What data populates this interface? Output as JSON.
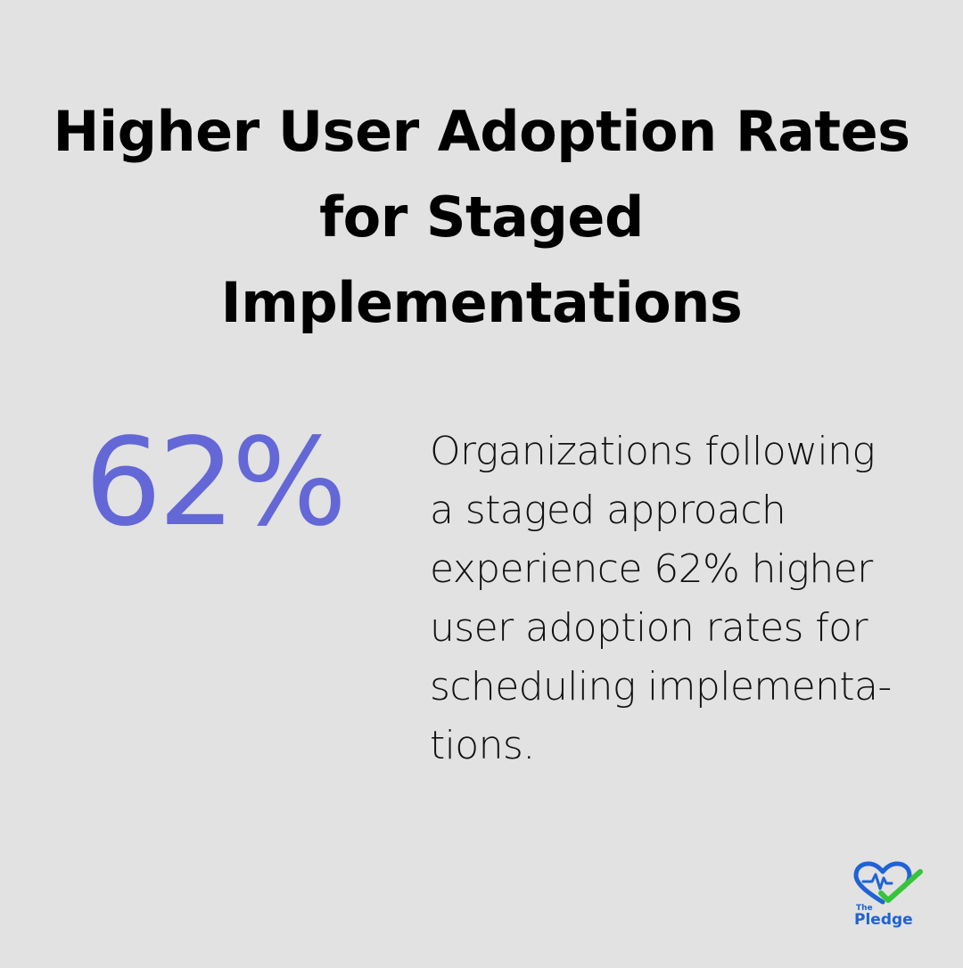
{
  "title": {
    "lines": [
      "Higher User Adoption Rates",
      "for Staged",
      "Implementations"
    ]
  },
  "stat": {
    "value": "62%",
    "description_lines": [
      "Organizations following",
      "a staged approach",
      "experience 62% higher",
      "user adoption rates for",
      "scheduling implementa-",
      "tions."
    ]
  },
  "logo": {
    "small_text": "The",
    "large_text": "Pledge",
    "icon": "heart-check-icon"
  },
  "colors": {
    "background": "#e1e2e1",
    "accent": "#6467d6",
    "logo_blue": "#1f63d6",
    "logo_green": "#37c33a"
  }
}
